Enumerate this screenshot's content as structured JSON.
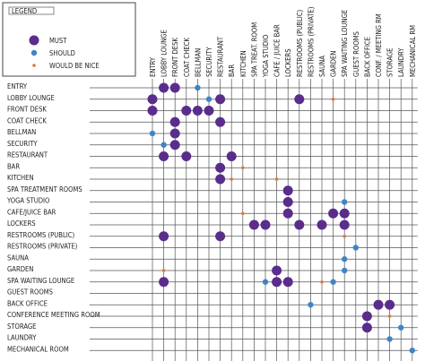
{
  "legend": {
    "title": "LEGEND",
    "items": [
      {
        "label": "MUST",
        "color": "#5a2d8c"
      },
      {
        "label": "SHOULD",
        "color": "#3f84c6"
      },
      {
        "label": "WOULD BE NICE",
        "color": "#e0763a"
      }
    ]
  },
  "rows": [
    "ENTRY",
    "LOBBY LOUNGE",
    "FRONT DESK",
    "COAT CHECK",
    "BELLMAN",
    "SECURITY",
    "RESTAURANT",
    "BAR",
    "KITCHEN",
    "SPA TREATMENT ROOMS",
    "YOGA STUDIO",
    "CAFE/JUICE BAR",
    "LOCKERS",
    "RESTROOMS (PUBLIC)",
    "RESTROOMS (PRIVATE)",
    "SAUNA",
    "GARDEN",
    "SPA WAITING LOUNGE",
    "GUEST ROOMS",
    "BACK OFFICE",
    "CONFERENCE MEETING ROOM",
    "STORAGE",
    "LAUNDRY",
    "MECHANICAL ROOM"
  ],
  "columns": [
    "ENTRY",
    "LOBBY LOUNGE",
    "FRONT DESK",
    "COAT CHECK",
    "BELLMAN",
    "SECURITY",
    "RESTAURANT",
    "BAR",
    "KITCHEN",
    "SPA TREAT. ROOM",
    "YOGA STUDIO",
    "CAFE / JUICE BAR",
    "LOCKERS",
    "RESTROOMS (PUBLIC)",
    "RESTROOMS (PRIVATE)",
    "SAUNA",
    "GARDEN",
    "SPA WAITING LOUNGE",
    "GUEST ROOMS",
    "BACK OFFICE",
    "CONF. / MEETING RM",
    "STORAGE",
    "LAUNDRY",
    "MECHANICAL RM"
  ],
  "cells": [
    {
      "row": 0,
      "col": 1,
      "level": 0
    },
    {
      "row": 0,
      "col": 2,
      "level": 0
    },
    {
      "row": 0,
      "col": 4,
      "level": 1
    },
    {
      "row": 1,
      "col": 0,
      "level": 0
    },
    {
      "row": 1,
      "col": 5,
      "level": 1
    },
    {
      "row": 1,
      "col": 6,
      "level": 0
    },
    {
      "row": 1,
      "col": 13,
      "level": 0
    },
    {
      "row": 1,
      "col": 16,
      "level": 2
    },
    {
      "row": 2,
      "col": 0,
      "level": 0
    },
    {
      "row": 2,
      "col": 3,
      "level": 0
    },
    {
      "row": 2,
      "col": 4,
      "level": 0
    },
    {
      "row": 2,
      "col": 5,
      "level": 0
    },
    {
      "row": 3,
      "col": 2,
      "level": 0
    },
    {
      "row": 3,
      "col": 6,
      "level": 0
    },
    {
      "row": 4,
      "col": 0,
      "level": 1
    },
    {
      "row": 4,
      "col": 2,
      "level": 0
    },
    {
      "row": 5,
      "col": 1,
      "level": 1
    },
    {
      "row": 5,
      "col": 2,
      "level": 0
    },
    {
      "row": 6,
      "col": 1,
      "level": 0
    },
    {
      "row": 6,
      "col": 3,
      "level": 0
    },
    {
      "row": 6,
      "col": 7,
      "level": 0
    },
    {
      "row": 7,
      "col": 6,
      "level": 0
    },
    {
      "row": 7,
      "col": 8,
      "level": 2
    },
    {
      "row": 8,
      "col": 6,
      "level": 0
    },
    {
      "row": 8,
      "col": 7,
      "level": 2
    },
    {
      "row": 8,
      "col": 11,
      "level": 2
    },
    {
      "row": 9,
      "col": 12,
      "level": 0
    },
    {
      "row": 10,
      "col": 12,
      "level": 0
    },
    {
      "row": 10,
      "col": 17,
      "level": 1
    },
    {
      "row": 11,
      "col": 8,
      "level": 2
    },
    {
      "row": 11,
      "col": 12,
      "level": 0
    },
    {
      "row": 11,
      "col": 16,
      "level": 0
    },
    {
      "row": 11,
      "col": 17,
      "level": 0
    },
    {
      "row": 12,
      "col": 9,
      "level": 0
    },
    {
      "row": 12,
      "col": 10,
      "level": 0
    },
    {
      "row": 12,
      "col": 13,
      "level": 0
    },
    {
      "row": 12,
      "col": 15,
      "level": 0
    },
    {
      "row": 12,
      "col": 17,
      "level": 0
    },
    {
      "row": 13,
      "col": 1,
      "level": 0
    },
    {
      "row": 13,
      "col": 6,
      "level": 0
    },
    {
      "row": 13,
      "col": 17,
      "level": 2
    },
    {
      "row": 14,
      "col": 18,
      "level": 1
    },
    {
      "row": 15,
      "col": 17,
      "level": 1
    },
    {
      "row": 16,
      "col": 1,
      "level": 2
    },
    {
      "row": 16,
      "col": 11,
      "level": 0
    },
    {
      "row": 16,
      "col": 17,
      "level": 1
    },
    {
      "row": 17,
      "col": 1,
      "level": 0
    },
    {
      "row": 17,
      "col": 10,
      "level": 1
    },
    {
      "row": 17,
      "col": 11,
      "level": 0
    },
    {
      "row": 17,
      "col": 12,
      "level": 0
    },
    {
      "row": 17,
      "col": 15,
      "level": 2
    },
    {
      "row": 17,
      "col": 16,
      "level": 1
    },
    {
      "row": 19,
      "col": 14,
      "level": 1
    },
    {
      "row": 19,
      "col": 20,
      "level": 0
    },
    {
      "row": 19,
      "col": 21,
      "level": 0
    },
    {
      "row": 20,
      "col": 19,
      "level": 0
    },
    {
      "row": 20,
      "col": 21,
      "level": 2
    },
    {
      "row": 21,
      "col": 19,
      "level": 0
    },
    {
      "row": 21,
      "col": 22,
      "level": 1
    },
    {
      "row": 22,
      "col": 21,
      "level": 1
    },
    {
      "row": 23,
      "col": 23,
      "level": 1
    }
  ]
}
